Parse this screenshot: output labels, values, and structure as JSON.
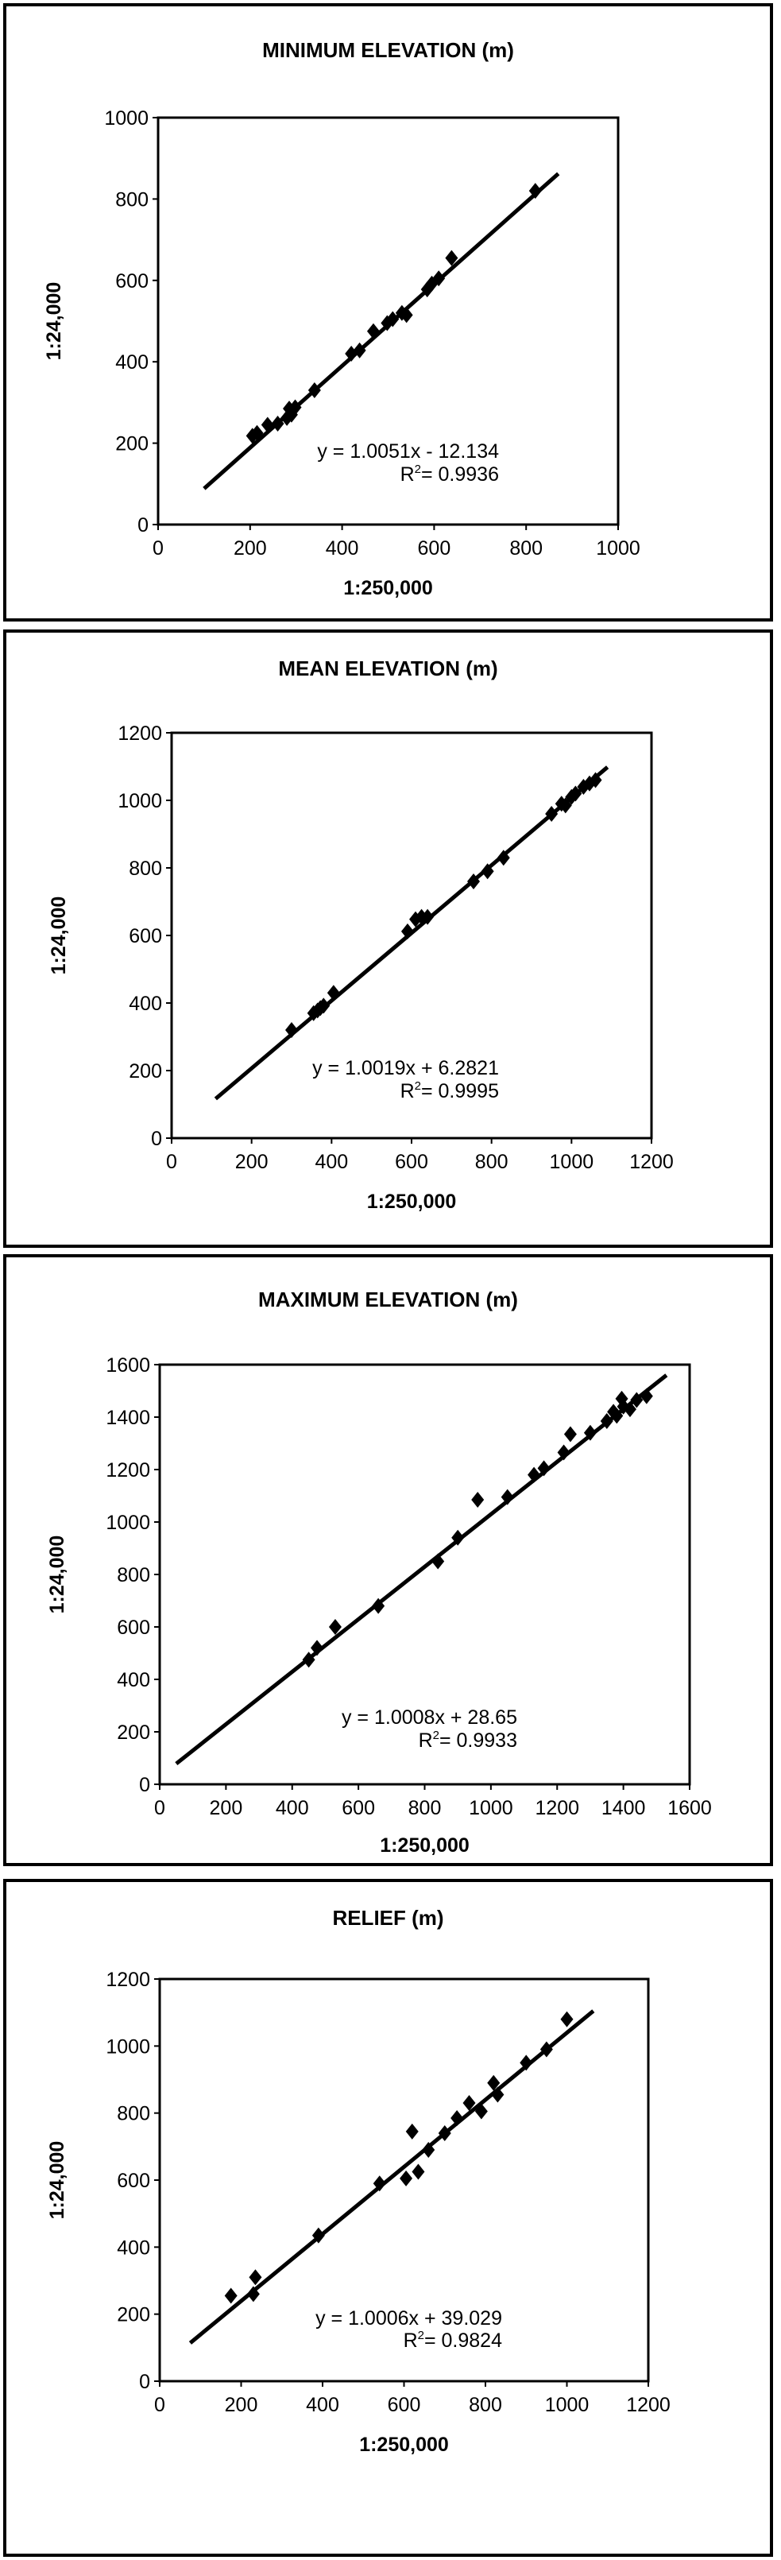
{
  "chart_data": [
    {
      "type": "scatter",
      "title": "MINIMUM ELEVATION (m)",
      "xlabel": "1:250,000",
      "ylabel": "1:24,000",
      "xlim": [
        0,
        1000
      ],
      "ylim": [
        0,
        1000
      ],
      "ticks": [
        "0",
        "200",
        "400",
        "600",
        "800",
        "1000"
      ],
      "grid": false,
      "series": [
        {
          "x": [
            205,
            215,
            238,
            260,
            280,
            285,
            290,
            298,
            340,
            420,
            438,
            468,
            498,
            510,
            530,
            540,
            585,
            595,
            610,
            638,
            820
          ],
          "y": [
            218,
            225,
            245,
            248,
            262,
            285,
            270,
            288,
            330,
            420,
            428,
            475,
            495,
            505,
            520,
            515,
            578,
            592,
            605,
            655,
            820
          ]
        }
      ],
      "trendline": {
        "slope": 1.0051,
        "intercept": -12.134,
        "x_range": [
          100,
          870
        ],
        "equation": "y = 1.0051x - 12.134",
        "r2_prefix": "R",
        "r2_value": "= 0.9936"
      }
    },
    {
      "type": "scatter",
      "title": "MEAN ELEVATION (m)",
      "xlabel": "1:250,000",
      "ylabel": "1:24,000",
      "xlim": [
        0,
        1200
      ],
      "ylim": [
        0,
        1200
      ],
      "ticks": [
        "0",
        "200",
        "400",
        "600",
        "800",
        "1000",
        "1200"
      ],
      "grid": false,
      "series": [
        {
          "x": [
            300,
            355,
            365,
            372,
            380,
            405,
            590,
            610,
            625,
            640,
            755,
            790,
            830,
            950,
            975,
            985,
            1000,
            1010,
            1030,
            1045,
            1060
          ],
          "y": [
            320,
            370,
            378,
            385,
            392,
            430,
            612,
            648,
            655,
            655,
            760,
            790,
            830,
            960,
            990,
            985,
            1010,
            1020,
            1040,
            1050,
            1060
          ]
        }
      ],
      "trendline": {
        "slope": 1.0019,
        "intercept": 6.2821,
        "x_range": [
          110,
          1090
        ],
        "equation": "y = 1.0019x + 6.2821",
        "r2_prefix": "R",
        "r2_value": "= 0.9995"
      }
    },
    {
      "type": "scatter",
      "title": "MAXIMUM ELEVATION (m)",
      "xlabel": "1:250,000",
      "ylabel": "1:24,000",
      "xlim": [
        0,
        1600
      ],
      "ylim": [
        0,
        1600
      ],
      "ticks": [
        "0",
        "200",
        "400",
        "600",
        "800",
        "1000",
        "1200",
        "1400",
        "1600"
      ],
      "grid": false,
      "series": [
        {
          "x": [
            450,
            475,
            530,
            660,
            840,
            900,
            960,
            1050,
            1130,
            1160,
            1220,
            1240,
            1300,
            1350,
            1370,
            1380,
            1395,
            1400,
            1420,
            1440,
            1470
          ],
          "y": [
            475,
            520,
            600,
            680,
            850,
            940,
            1085,
            1095,
            1180,
            1205,
            1265,
            1335,
            1340,
            1385,
            1420,
            1405,
            1470,
            1440,
            1430,
            1465,
            1480
          ]
        }
      ],
      "trendline": {
        "slope": 1.0008,
        "intercept": 28.65,
        "x_range": [
          50,
          1530
        ],
        "equation": "y = 1.0008x + 28.65",
        "r2_prefix": "R",
        "r2_value": "= 0.9933"
      }
    },
    {
      "type": "scatter",
      "title": "RELIEF (m)",
      "xlabel": "1:250,000",
      "ylabel": "1:24,000",
      "xlim": [
        0,
        1200
      ],
      "ylim": [
        0,
        1200
      ],
      "ticks": [
        "0",
        "200",
        "400",
        "600",
        "800",
        "1000",
        "1200"
      ],
      "grid": false,
      "series": [
        {
          "x": [
            175,
            230,
            235,
            390,
            540,
            605,
            620,
            635,
            660,
            700,
            730,
            760,
            790,
            820,
            830,
            900,
            950,
            1000
          ],
          "y": [
            255,
            260,
            310,
            435,
            590,
            605,
            745,
            625,
            690,
            740,
            785,
            830,
            805,
            890,
            855,
            950,
            990,
            1080
          ]
        }
      ],
      "trendline": {
        "slope": 1.0006,
        "intercept": 39.029,
        "x_range": [
          75,
          1065
        ],
        "equation": "y = 1.0006x + 39.029",
        "r2_prefix": "R",
        "r2_value": "= 0.9824"
      }
    }
  ]
}
